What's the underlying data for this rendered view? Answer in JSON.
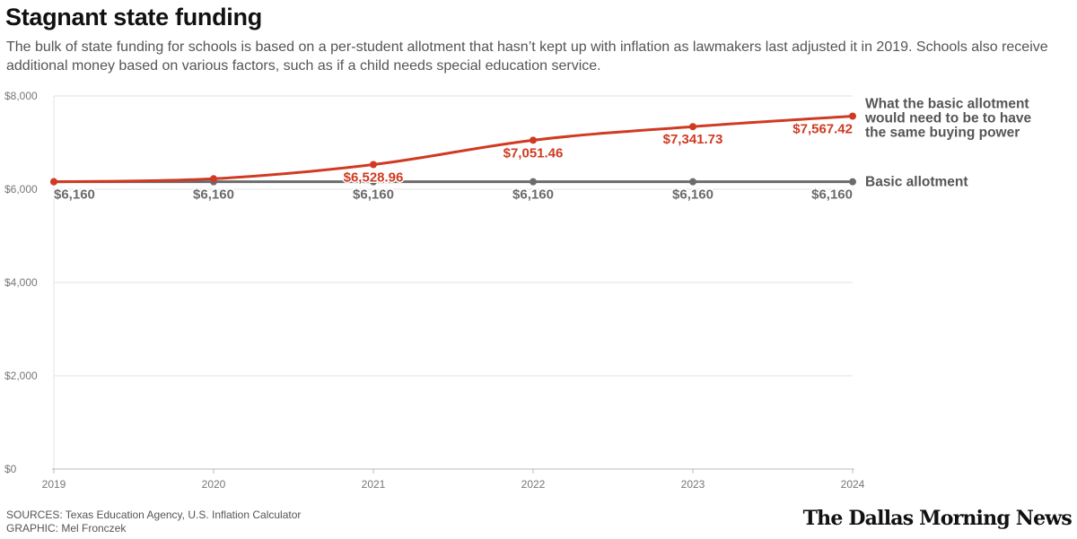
{
  "title": "Stagnant state funding",
  "subtitle": "The bulk of state funding for schools is based on a per-student allotment that hasn’t kept up with inflation as lawmakers last adjusted it in 2019. Schools also receive additional money based on various factors, such as if a child needs special education service.",
  "chart_data": {
    "type": "line",
    "x": [
      "2019",
      "2020",
      "2021",
      "2022",
      "2023",
      "2024"
    ],
    "ylim": [
      0,
      8000
    ],
    "yticks": [
      0,
      2000,
      4000,
      6000,
      8000
    ],
    "ytick_labels": [
      "$0",
      "$2,000",
      "$4,000",
      "$6,000",
      "$8,000"
    ],
    "grid": true,
    "series": [
      {
        "name": "What the basic allotment would need to be to have the same buying power",
        "name_lines": [
          "What the basic allotment",
          "would need to be to have",
          "the same buying power"
        ],
        "color": "#d03a22",
        "values": [
          6160,
          6225,
          6528.96,
          7051.46,
          7341.73,
          7567.42
        ],
        "labels": [
          "",
          "",
          "$6,528.96",
          "$7,051.46",
          "$7,341.73",
          "$7,567.42"
        ]
      },
      {
        "name": "Basic allotment",
        "name_lines": [
          "Basic allotment"
        ],
        "color": "#6b6b6b",
        "values": [
          6160,
          6160,
          6160,
          6160,
          6160,
          6160
        ],
        "labels": [
          "$6,160",
          "$6,160",
          "$6,160",
          "$6,160",
          "$6,160",
          "$6,160"
        ]
      }
    ]
  },
  "footer": {
    "sources": "SOURCES: Texas Education Agency, U.S. Inflation Calculator",
    "graphic": "GRAPHIC: Mel Fronczek"
  },
  "brand": "The Dallas Morning News"
}
